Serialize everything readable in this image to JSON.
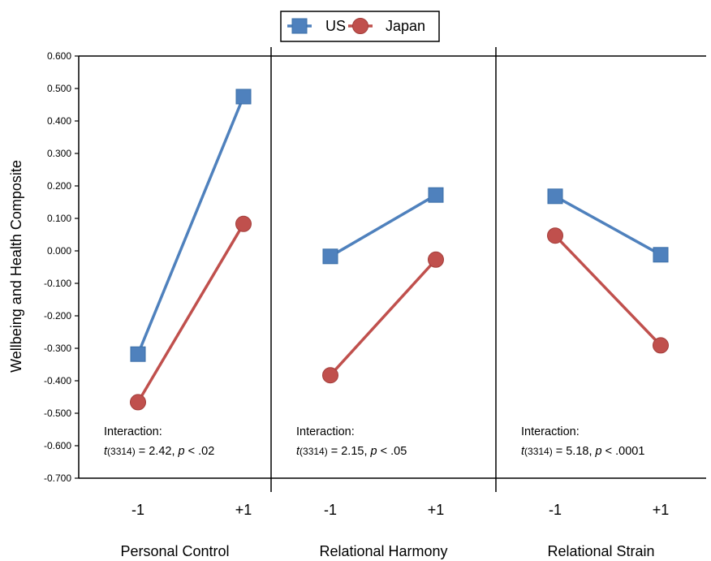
{
  "chart_data": {
    "type": "line",
    "ylabel": "Wellbeing and Health Composite",
    "ylim": [
      -0.7,
      0.6
    ],
    "y_ticks": [
      "0.600",
      "0.500",
      "0.400",
      "0.300",
      "0.200",
      "0.100",
      "0.000",
      "-0.100",
      "-0.200",
      "-0.300",
      "-0.400",
      "-0.500",
      "-0.600",
      "-0.700"
    ],
    "grid": false,
    "legend_position": "top-center",
    "x_levels": [
      "-1",
      "+1"
    ],
    "series_styles": [
      {
        "name": "US",
        "color": "#4F81BD",
        "marker": "square"
      },
      {
        "name": "Japan",
        "color": "#C0504D",
        "marker": "circle"
      }
    ],
    "panels": [
      {
        "label": "Personal Control",
        "series": [
          {
            "name": "US",
            "values": [
              -0.318,
              0.475
            ]
          },
          {
            "name": "Japan",
            "values": [
              -0.466,
              0.083
            ]
          }
        ],
        "annotation": {
          "line1": "Interaction:",
          "t": "t",
          "df": "(3314)",
          "stat": " = 2.42, ",
          "p": "p",
          "rest": " < .02"
        }
      },
      {
        "label": "Relational Harmony",
        "series": [
          {
            "name": "US",
            "values": [
              -0.017,
              0.172
            ]
          },
          {
            "name": "Japan",
            "values": [
              -0.383,
              -0.027
            ]
          }
        ],
        "annotation": {
          "line1": "Interaction:",
          "t": "t",
          "df": "(3314)",
          "stat": " = 2.15, ",
          "p": "p",
          "rest": " < .05"
        }
      },
      {
        "label": "Relational Strain",
        "series": [
          {
            "name": "US",
            "values": [
              0.168,
              -0.012
            ]
          },
          {
            "name": "Japan",
            "values": [
              0.047,
              -0.291
            ]
          }
        ],
        "annotation": {
          "line1": "Interaction:",
          "t": "t",
          "df": "(3314)",
          "stat": " = 5.18, ",
          "p": "p",
          "rest": " < .0001"
        }
      }
    ]
  }
}
